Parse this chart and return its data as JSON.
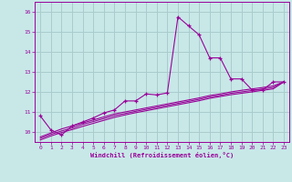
{
  "xlabel": "Windchill (Refroidissement éolien,°C)",
  "background_color": "#c8e8e8",
  "grid_color": "#aacccc",
  "line_color": "#990099",
  "xlim": [
    -0.5,
    23.5
  ],
  "ylim": [
    9.5,
    16.5
  ],
  "yticks": [
    10,
    11,
    12,
    13,
    14,
    15,
    16
  ],
  "xticks": [
    0,
    1,
    2,
    3,
    4,
    5,
    6,
    7,
    8,
    9,
    10,
    11,
    12,
    13,
    14,
    15,
    16,
    17,
    18,
    19,
    20,
    21,
    22,
    23
  ],
  "series": [
    {
      "x": [
        0,
        1,
        2,
        3,
        4,
        5,
        6,
        7,
        8,
        9,
        10,
        11,
        12,
        13,
        14,
        15,
        16,
        17,
        18,
        19,
        20,
        21,
        22,
        23
      ],
      "y": [
        10.8,
        10.1,
        9.85,
        10.3,
        10.5,
        10.7,
        10.95,
        11.1,
        11.55,
        11.55,
        11.9,
        11.85,
        11.95,
        15.75,
        15.3,
        14.85,
        13.7,
        13.7,
        12.65,
        12.65,
        12.1,
        12.1,
        12.5,
        12.5
      ],
      "marker": true
    },
    {
      "x": [
        0,
        1,
        2,
        3,
        4,
        5,
        6,
        7,
        8,
        9,
        10,
        11,
        12,
        13,
        14,
        15,
        16,
        17,
        18,
        19,
        20,
        21,
        22,
        23
      ],
      "y": [
        9.75,
        9.95,
        10.15,
        10.3,
        10.45,
        10.6,
        10.75,
        10.9,
        11.0,
        11.1,
        11.2,
        11.3,
        11.4,
        11.5,
        11.6,
        11.7,
        11.82,
        11.9,
        12.0,
        12.08,
        12.15,
        12.22,
        12.3,
        12.5
      ],
      "marker": false
    },
    {
      "x": [
        0,
        1,
        2,
        3,
        4,
        5,
        6,
        7,
        8,
        9,
        10,
        11,
        12,
        13,
        14,
        15,
        16,
        17,
        18,
        19,
        20,
        21,
        22,
        23
      ],
      "y": [
        9.68,
        9.88,
        10.05,
        10.2,
        10.38,
        10.52,
        10.67,
        10.82,
        10.92,
        11.03,
        11.13,
        11.23,
        11.33,
        11.43,
        11.53,
        11.63,
        11.75,
        11.83,
        11.93,
        12.0,
        12.07,
        12.15,
        12.22,
        12.5
      ],
      "marker": false
    },
    {
      "x": [
        0,
        1,
        2,
        3,
        4,
        5,
        6,
        7,
        8,
        9,
        10,
        11,
        12,
        13,
        14,
        15,
        16,
        17,
        18,
        19,
        20,
        21,
        22,
        23
      ],
      "y": [
        9.6,
        9.8,
        9.97,
        10.12,
        10.28,
        10.43,
        10.58,
        10.73,
        10.85,
        10.96,
        11.06,
        11.16,
        11.26,
        11.36,
        11.46,
        11.56,
        11.68,
        11.77,
        11.86,
        11.93,
        12.0,
        12.08,
        12.15,
        12.5
      ],
      "marker": false
    }
  ]
}
